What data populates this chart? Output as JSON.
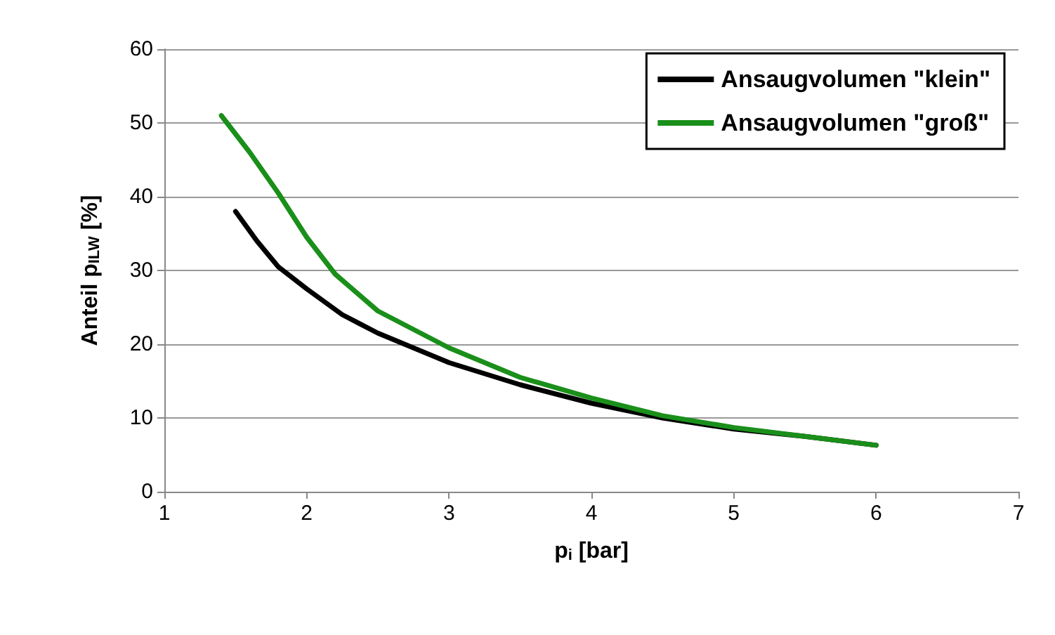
{
  "chart_data": {
    "type": "line",
    "xlabel": "p$_{i}$ [bar]",
    "ylabel": "Anteil p$_{ILW}$ [%]",
    "xlim": [
      1,
      7
    ],
    "xticks": [
      1,
      2,
      3,
      4,
      5,
      6,
      7
    ],
    "ylim": [
      0,
      60
    ],
    "yticks": [
      0,
      10,
      20,
      30,
      40,
      50,
      60
    ],
    "grid": "y",
    "legend": "top right",
    "marker": "none",
    "line_style": "solid",
    "series": [
      {
        "name": "Ansaugvolumen \"klein\"",
        "color": "#000000",
        "x": [
          1.5,
          1.65,
          1.8,
          2,
          2.25,
          2.5,
          3,
          3.5,
          4,
          4.5,
          5,
          5.5,
          6
        ],
        "values": [
          38,
          34,
          30.5,
          27.5,
          24,
          21.5,
          17.5,
          14.5,
          12,
          10,
          8.5,
          7.5,
          6.3
        ]
      },
      {
        "name": "Ansaugvolumen \"groß\"",
        "color": "#1a8f1a",
        "x": [
          1.4,
          1.6,
          1.8,
          2,
          2.2,
          2.5,
          3,
          3.5,
          4,
          4.5,
          5,
          5.5,
          6
        ],
        "values": [
          51,
          46,
          40.5,
          34.5,
          29.5,
          24.5,
          19.5,
          15.5,
          12.7,
          10.3,
          8.7,
          7.5,
          6.3
        ]
      }
    ]
  }
}
